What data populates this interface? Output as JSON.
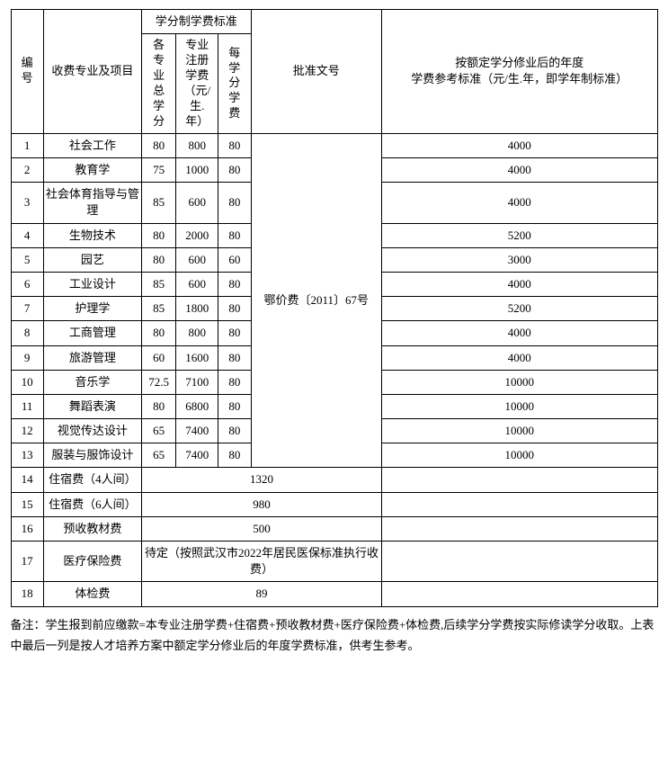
{
  "headers": {
    "num": "编号",
    "major": "收费专业及项目",
    "credit_std": "学分制学费标准",
    "total_credits": "各专业总学分",
    "reg_fee": "专业注册学费（元/生.年）",
    "per_credit": "每学分学费",
    "approval": "批准文号",
    "ref_std": "按额定学分修业后的年度\n学费参考标准（元/生.年，即学年制标准）"
  },
  "approval_value": "鄂价费〔2011〕67号",
  "rows": [
    {
      "n": "1",
      "major": "社会工作",
      "credits": "80",
      "reg": "800",
      "per": "80",
      "ref": "4000"
    },
    {
      "n": "2",
      "major": "教育学",
      "credits": "75",
      "reg": "1000",
      "per": "80",
      "ref": "4000"
    },
    {
      "n": "3",
      "major": "社会体育指导与管理",
      "credits": "85",
      "reg": "600",
      "per": "80",
      "ref": "4000"
    },
    {
      "n": "4",
      "major": "生物技术",
      "credits": "80",
      "reg": "2000",
      "per": "80",
      "ref": "5200"
    },
    {
      "n": "5",
      "major": "园艺",
      "credits": "80",
      "reg": "600",
      "per": "60",
      "ref": "3000"
    },
    {
      "n": "6",
      "major": "工业设计",
      "credits": "85",
      "reg": "600",
      "per": "80",
      "ref": "4000"
    },
    {
      "n": "7",
      "major": "护理学",
      "credits": "85",
      "reg": "1800",
      "per": "80",
      "ref": "5200"
    },
    {
      "n": "8",
      "major": "工商管理",
      "credits": "80",
      "reg": "800",
      "per": "80",
      "ref": "4000"
    },
    {
      "n": "9",
      "major": "旅游管理",
      "credits": "60",
      "reg": "1600",
      "per": "80",
      "ref": "4000"
    },
    {
      "n": "10",
      "major": "音乐学",
      "credits": "72.5",
      "reg": "7100",
      "per": "80",
      "ref": "10000"
    },
    {
      "n": "11",
      "major": "舞蹈表演",
      "credits": "80",
      "reg": "6800",
      "per": "80",
      "ref": "10000"
    },
    {
      "n": "12",
      "major": "视觉传达设计",
      "credits": "65",
      "reg": "7400",
      "per": "80",
      "ref": "10000"
    },
    {
      "n": "13",
      "major": "服装与服饰设计",
      "credits": "65",
      "reg": "7400",
      "per": "80",
      "ref": "10000"
    }
  ],
  "extra_rows": [
    {
      "n": "14",
      "label": "住宿费（4人间）",
      "val": "1320"
    },
    {
      "n": "15",
      "label": "住宿费（6人间）",
      "val": "980"
    },
    {
      "n": "16",
      "label": "预收教材费",
      "val": "500"
    },
    {
      "n": "17",
      "label": "医疗保险费",
      "val": "待定（按照武汉市2022年居民医保标准执行收费）"
    },
    {
      "n": "18",
      "label": "体检费",
      "val": "89"
    }
  ],
  "footnote": "备注：学生报到前应缴款=本专业注册学费+住宿费+预收教材费+医疗保险费+体检费,后续学分学费按实际修读学分收取。上表中最后一列是按人才培养方案中额定学分修业后的年度学费标准，供考生参考。"
}
